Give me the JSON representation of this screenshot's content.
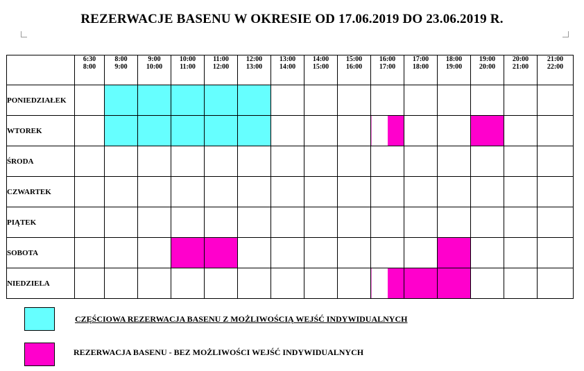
{
  "title": "REZERWACJE BASENU W OKRESIE OD 17.06.2019 DO 23.06.2019 R.",
  "colors": {
    "partial": "#66ffff",
    "full": "#ff00cc"
  },
  "time_slots": [
    {
      "start": "6:30",
      "end": "8:00"
    },
    {
      "start": "8:00",
      "end": "9:00"
    },
    {
      "start": "9:00",
      "end": "10:00"
    },
    {
      "start": "10:00",
      "end": "11:00"
    },
    {
      "start": "11:00",
      "end": "12:00"
    },
    {
      "start": "12:00",
      "end": "13:00"
    },
    {
      "start": "13:00",
      "end": "14:00"
    },
    {
      "start": "14:00",
      "end": "15:00"
    },
    {
      "start": "15:00",
      "end": "16:00"
    },
    {
      "start": "16:00",
      "end": "17:00"
    },
    {
      "start": "17:00",
      "end": "18:00"
    },
    {
      "start": "18:00",
      "end": "19:00"
    },
    {
      "start": "19:00",
      "end": "20:00"
    },
    {
      "start": "20:00",
      "end": "21:00"
    },
    {
      "start": "21:00",
      "end": "22:00"
    }
  ],
  "rows": [
    {
      "day": "PONIEDZIAŁEK",
      "reservations": {
        "partial": [
          1,
          2,
          3,
          4,
          5
        ],
        "full": []
      },
      "half_full": []
    },
    {
      "day": "WTOREK",
      "reservations": {
        "partial": [
          1,
          2,
          3,
          4,
          5
        ],
        "full": [
          12
        ]
      },
      "half_full": [
        9
      ]
    },
    {
      "day": "ŚRODA",
      "reservations": {
        "partial": [],
        "full": []
      },
      "half_full": []
    },
    {
      "day": "CZWARTEK",
      "reservations": {
        "partial": [],
        "full": []
      },
      "half_full": []
    },
    {
      "day": "PIĄTEK",
      "reservations": {
        "partial": [],
        "full": []
      },
      "half_full": []
    },
    {
      "day": "SOBOTA",
      "reservations": {
        "partial": [],
        "full": [
          3,
          4,
          11
        ]
      },
      "half_full": []
    },
    {
      "day": "NIEDZIELA",
      "reservations": {
        "partial": [],
        "full": [
          10,
          11
        ]
      },
      "half_full": [
        9
      ]
    }
  ],
  "legend": {
    "partial_label": "CZĘŚCIOWA REZERWACJA BASENU  Z MOŻLIWOŚCIĄ WEJŚĆ INDYWIDUALNYCH",
    "full_label": "REZERWACJA BASENU  -  BEZ MOŻLIWOŚCI WEJŚĆ INDYWIDUALNYCH"
  }
}
